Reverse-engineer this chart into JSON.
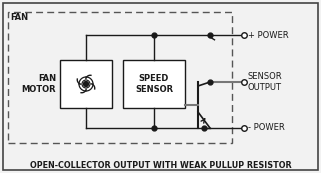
{
  "bg_color": "#f2f2f2",
  "border_color": "#444444",
  "line_color": "#1a1a1a",
  "dashed_color": "#555555",
  "gray_line_color": "#777777",
  "title_text": "OPEN-COLLECTOR OUTPUT WITH WEAK PULLUP RESISTOR",
  "fan_label": "FAN",
  "fan_motor_label": "FAN\nMOTOR",
  "speed_sensor_label": "SPEED\nSENSOR",
  "power_plus_label": "+ POWER",
  "power_minus_label": "- POWER",
  "sensor_output_label": "SENSOR\nOUTPUT",
  "title_fontsize": 5.8,
  "label_fontsize": 6.0,
  "small_fontsize": 5.5
}
